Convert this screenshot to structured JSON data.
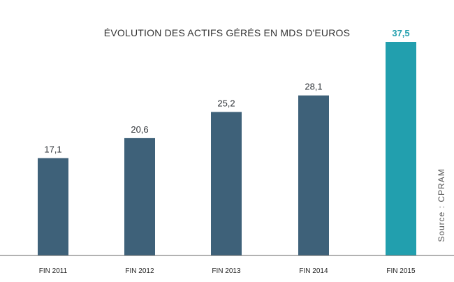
{
  "chart_data": {
    "type": "bar",
    "title": "ÉVOLUTION DES ACTIFS GÉRÉS EN MDS D'EUROS",
    "categories": [
      "FIN 2011",
      "FIN 2012",
      "FIN 2013",
      "FIN 2014",
      "FIN 2015"
    ],
    "values": [
      17.1,
      20.6,
      25.2,
      28.1,
      37.5
    ],
    "value_labels": [
      "17,1",
      "20,6",
      "25,2",
      "28,1",
      "37,5"
    ],
    "highlight_index": 4,
    "xlabel": "",
    "ylabel": "",
    "ylim": [
      0,
      41
    ],
    "grid": false,
    "colors": {
      "bar": "#3e6179",
      "highlight": "#229fae",
      "axis": "#666666"
    },
    "source": "Source : CPRAM"
  }
}
